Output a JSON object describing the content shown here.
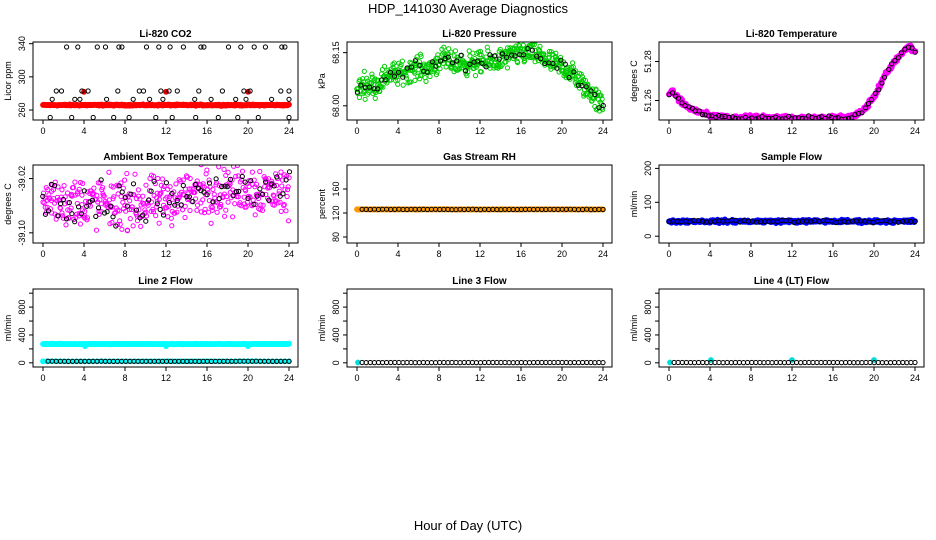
{
  "figure": {
    "title": "HDP_141030  Average Diagnostics",
    "xlabel": "Hour of Day (UTC)"
  },
  "chart_data": [
    {
      "type": "scatter",
      "title": "Li-820 CO2",
      "ylabel": "Licor ppm",
      "xlim": [
        0,
        24
      ],
      "xticks": [
        0,
        4,
        8,
        12,
        16,
        20,
        24
      ],
      "ylim": [
        248,
        342
      ],
      "yticks": [
        260,
        300,
        340
      ],
      "ytick_labels": [
        "260",
        "300",
        "340"
      ],
      "series": [
        {
          "name": "primary",
          "color": "#ff0000",
          "marker": "filled",
          "gen": "flat",
          "base": 266,
          "noise": 0.6,
          "n": 360
        },
        {
          "name": "red-highs",
          "color": "#dd0000",
          "marker": "filled",
          "x": [
            4.0,
            12.0,
            20.0
          ],
          "y": [
            282,
            282,
            282
          ]
        },
        {
          "name": "level-336",
          "color": "#000000",
          "marker": "circle",
          "x": [
            2.3,
            3.4,
            5.3,
            6.1,
            7.4,
            7.7,
            10.1,
            11.3,
            12.4,
            13.7,
            15.4,
            15.7,
            18.1,
            19.3,
            20.6,
            21.7,
            23.3,
            23.6
          ],
          "y": [
            336,
            336,
            336,
            336,
            336,
            336,
            336,
            336,
            336,
            336,
            336,
            336,
            336,
            336,
            336,
            336,
            336,
            336
          ]
        },
        {
          "name": "level-283",
          "color": "#000000",
          "marker": "circle",
          "x": [
            1.3,
            1.8,
            3.8,
            4.4,
            7.3,
            9.4,
            9.8,
            11.5,
            12.3,
            13.1,
            15.2,
            17.5,
            19.6,
            20.2,
            23.2,
            24.0
          ],
          "y": [
            283,
            283,
            283,
            283,
            283,
            283,
            283,
            283,
            283,
            283,
            283,
            283,
            283,
            283,
            283,
            283
          ]
        },
        {
          "name": "level-273",
          "color": "#000000",
          "marker": "circle",
          "x": [
            0.9,
            3.1,
            3.6,
            6.2,
            8.8,
            10.4,
            11.7,
            14.8,
            16.4,
            18.8,
            19.8,
            22.3,
            24.0
          ],
          "y": [
            273,
            273,
            273,
            273,
            273,
            273,
            273,
            273,
            273,
            273,
            273,
            273,
            273
          ]
        },
        {
          "name": "level-251",
          "color": "#000000",
          "marker": "circle",
          "x": [
            0.7,
            2.8,
            4.9,
            6.9,
            8.4,
            11.0,
            12.6,
            14.9,
            17.1,
            19.0,
            21.0,
            24.0
          ],
          "y": [
            251,
            251,
            251,
            251,
            251,
            251,
            251,
            251,
            251,
            251,
            251,
            251
          ]
        }
      ]
    },
    {
      "type": "scatter",
      "title": "Li-820 Pressure",
      "ylabel": "kPa",
      "xlim": [
        0,
        24
      ],
      "xticks": [
        0,
        4,
        8,
        12,
        16,
        20,
        24
      ],
      "ylim": [
        67.96,
        68.18
      ],
      "yticks": [
        68.0,
        68.15
      ],
      "ytick_labels": [
        "68.00",
        "68.15"
      ],
      "series": [
        {
          "name": "primary",
          "color": "#00cc00",
          "marker": "circle",
          "gen": "curve",
          "n": 520,
          "kx": [
            0.0,
            0.5,
            2.0,
            3.0,
            4.0,
            5.0,
            6.0,
            7.0,
            8.0,
            10.0,
            12.0,
            14.0,
            16.0,
            17.0,
            18.0,
            19.0,
            20.0,
            21.0,
            22.0,
            23.0,
            24.0
          ],
          "ky": [
            68.04,
            68.06,
            68.06,
            68.09,
            68.09,
            68.1,
            68.11,
            68.1,
            68.13,
            68.12,
            68.12,
            68.13,
            68.15,
            68.15,
            68.14,
            68.12,
            68.11,
            68.09,
            68.06,
            68.03,
            68.0
          ],
          "noise": 0.028
        },
        {
          "name": "black",
          "color": "#000000",
          "marker": "circle",
          "gen": "curve",
          "n": 60,
          "kx": [
            0.0,
            0.5,
            2.0,
            3.0,
            4.0,
            5.0,
            6.0,
            7.0,
            8.0,
            10.0,
            12.0,
            14.0,
            16.0,
            17.0,
            18.0,
            19.0,
            20.0,
            21.0,
            22.0,
            23.0,
            24.0
          ],
          "ky": [
            68.04,
            68.06,
            68.06,
            68.09,
            68.09,
            68.1,
            68.11,
            68.1,
            68.13,
            68.12,
            68.12,
            68.13,
            68.15,
            68.15,
            68.14,
            68.12,
            68.11,
            68.09,
            68.06,
            68.03,
            68.0
          ],
          "noise": 0.018
        }
      ]
    },
    {
      "type": "scatter",
      "title": "Li-820 Temperature",
      "ylabel": "degrees C",
      "xlim": [
        0,
        24
      ],
      "xticks": [
        0,
        4,
        8,
        12,
        16,
        20,
        24
      ],
      "ylim": [
        51.25,
        51.29
      ],
      "yticks": [
        51.26,
        51.28
      ],
      "ytick_labels": [
        "51.26",
        "51.28"
      ],
      "series": [
        {
          "name": "primary",
          "color": "#ff00ff",
          "marker": "filled",
          "gen": "curve",
          "n": 420,
          "kx": [
            0.0,
            0.4,
            1.0,
            2.0,
            3.0,
            4.0,
            6.0,
            8.0,
            10.0,
            12.0,
            14.0,
            16.0,
            17.0,
            18.0,
            19.0,
            20.0,
            21.0,
            22.0,
            23.0,
            23.5,
            24.0
          ],
          "ky": [
            51.263,
            51.265,
            51.26,
            51.256,
            51.254,
            51.252,
            51.251,
            51.251,
            51.251,
            51.251,
            51.251,
            51.251,
            51.251,
            51.252,
            51.255,
            51.262,
            51.272,
            51.28,
            51.286,
            51.288,
            51.285
          ],
          "noise": 0.0012
        },
        {
          "name": "black",
          "color": "#000000",
          "marker": "circle",
          "gen": "curve",
          "n": 75,
          "kx": [
            0.0,
            0.4,
            1.0,
            2.0,
            3.0,
            4.0,
            6.0,
            8.0,
            10.0,
            12.0,
            14.0,
            16.0,
            17.0,
            18.0,
            19.0,
            20.0,
            21.0,
            22.0,
            23.0,
            23.5,
            24.0
          ],
          "ky": [
            51.263,
            51.265,
            51.26,
            51.256,
            51.254,
            51.252,
            51.251,
            51.251,
            51.251,
            51.251,
            51.251,
            51.251,
            51.251,
            51.252,
            51.255,
            51.262,
            51.272,
            51.28,
            51.286,
            51.288,
            51.285
          ],
          "noise": 0.0008
        }
      ]
    },
    {
      "type": "scatter",
      "title": "Ambient Box Temperature",
      "ylabel": "degrees C",
      "xlim": [
        0,
        24
      ],
      "xticks": [
        0,
        4,
        8,
        12,
        16,
        20,
        24
      ],
      "ylim": [
        -39.115,
        -39.0
      ],
      "yticks": [
        -39.1,
        -39.02
      ],
      "ytick_labels": [
        "-39.10",
        "-39.02"
      ],
      "series": [
        {
          "name": "primary",
          "color": "#ff00ff",
          "marker": "circle",
          "gen": "curve",
          "n": 430,
          "kx": [
            0.0,
            4.0,
            8.0,
            10.0,
            12.0,
            16.0,
            20.0,
            24.0
          ],
          "ky": [
            -39.052,
            -39.055,
            -39.056,
            -39.058,
            -39.052,
            -39.038,
            -39.035,
            -39.04
          ],
          "noise": 0.032
        },
        {
          "name": "black",
          "color": "#000000",
          "marker": "circle",
          "gen": "curve",
          "n": 85,
          "kx": [
            0.0,
            4.0,
            8.0,
            10.0,
            12.0,
            16.0,
            20.0,
            24.0
          ],
          "ky": [
            -39.052,
            -39.055,
            -39.056,
            -39.058,
            -39.052,
            -39.038,
            -39.035,
            -39.04
          ],
          "noise": 0.028
        }
      ]
    },
    {
      "type": "scatter",
      "title": "Gas Stream RH",
      "ylabel": "percent",
      "xlim": [
        0,
        24
      ],
      "xticks": [
        0,
        4,
        8,
        12,
        16,
        20,
        24
      ],
      "ylim": [
        70,
        200
      ],
      "yticks": [
        80,
        120,
        160
      ],
      "ytick_labels": [
        "80",
        "120",
        "160"
      ],
      "series": [
        {
          "name": "primary",
          "color": "#ff9900",
          "marker": "filled",
          "gen": "flat",
          "base": 126,
          "noise": 0.4,
          "n": 260
        },
        {
          "name": "black",
          "color": "#000000",
          "marker": "circle",
          "gen": "flat",
          "base": 126,
          "noise": 0.3,
          "n": 60,
          "start": 0.5
        }
      ]
    },
    {
      "type": "scatter",
      "title": "Sample Flow",
      "ylabel": "ml/min",
      "xlim": [
        0,
        24
      ],
      "xticks": [
        0,
        4,
        8,
        12,
        16,
        20,
        24
      ],
      "ylim": [
        -20,
        210
      ],
      "yticks": [
        0,
        100,
        200
      ],
      "ytick_labels": [
        "0",
        "100",
        "200"
      ],
      "series": [
        {
          "name": "primary",
          "color": "#0000ff",
          "marker": "filled",
          "gen": "flat",
          "base": 44,
          "noise": 4,
          "n": 300
        },
        {
          "name": "black",
          "color": "#000000",
          "marker": "circle",
          "gen": "flat",
          "base": 44,
          "noise": 3,
          "n": 60
        }
      ]
    },
    {
      "type": "scatter",
      "title": "Line 2 Flow",
      "ylabel": "ml/min",
      "xlim": [
        0,
        24
      ],
      "xticks": [
        0,
        4,
        8,
        12,
        16,
        20,
        24
      ],
      "ylim": [
        -60,
        1060
      ],
      "yticks": [
        0,
        200,
        400,
        600,
        800,
        1000
      ],
      "ytick_labels": [
        "0",
        "400",
        "800"
      ],
      "series": [
        {
          "name": "primary",
          "color": "#00ffff",
          "marker": "filled",
          "gen": "flat",
          "base": 270,
          "noise": 3,
          "n": 300
        },
        {
          "name": "dips",
          "color": "#00ffff",
          "marker": "filled",
          "x": [
            4.1,
            12.0,
            20.0
          ],
          "y": [
            240,
            240,
            240
          ]
        },
        {
          "name": "near-zero",
          "color": "#00ffff",
          "marker": "filled",
          "gen": "flat",
          "base": 22,
          "noise": 1,
          "n": 60
        },
        {
          "name": "black",
          "color": "#000000",
          "marker": "circle",
          "gen": "flat",
          "base": 22,
          "noise": 1,
          "n": 60,
          "start": 0.5
        }
      ]
    },
    {
      "type": "scatter",
      "title": "Line 3 Flow",
      "ylabel": "ml/min",
      "xlim": [
        0,
        24
      ],
      "xticks": [
        0,
        4,
        8,
        12,
        16,
        20,
        24
      ],
      "ylim": [
        -60,
        1060
      ],
      "yticks": [
        0,
        200,
        400,
        600,
        800,
        1000
      ],
      "ytick_labels": [
        "0",
        "400",
        "800"
      ],
      "series": [
        {
          "name": "primary",
          "color": "#00dddd",
          "marker": "filled",
          "x": [
            0.1
          ],
          "y": [
            5
          ]
        },
        {
          "name": "black",
          "color": "#000000",
          "marker": "circle",
          "gen": "flat",
          "base": 4,
          "noise": 0.5,
          "n": 60,
          "start": 0.5
        }
      ]
    },
    {
      "type": "scatter",
      "title": "Line 4 (LT) Flow",
      "ylabel": "ml/min",
      "xlim": [
        0,
        24
      ],
      "xticks": [
        0,
        4,
        8,
        12,
        16,
        20,
        24
      ],
      "ylim": [
        -60,
        1060
      ],
      "yticks": [
        0,
        200,
        400,
        600,
        800,
        1000
      ],
      "ytick_labels": [
        "0",
        "400",
        "800"
      ],
      "series": [
        {
          "name": "primary",
          "color": "#00dddd",
          "marker": "filled",
          "x": [
            0.1,
            4.1,
            12.0,
            20.0
          ],
          "y": [
            5,
            40,
            40,
            40
          ]
        },
        {
          "name": "black",
          "color": "#000000",
          "marker": "circle",
          "gen": "flat",
          "base": 4,
          "noise": 0.5,
          "n": 60,
          "start": 0.5
        }
      ]
    }
  ]
}
